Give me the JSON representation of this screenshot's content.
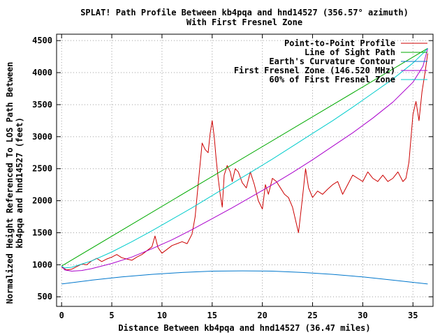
{
  "chart_data": {
    "type": "line",
    "title": "SPLAT! Path Profile Between kb4pqa and hnd14527 (356.57° azimuth)",
    "subtitle": "With First Fresnel Zone",
    "xlabel": "Distance Between kb4pqa and hnd14527 (36.47 miles)",
    "ylabel_line1": "Normalized Height Referenced To LOS Path Between",
    "ylabel_line2": "kb4pqa and hnd14527 (feet)",
    "xlim": [
      -0.5,
      37.0
    ],
    "ylim": [
      350,
      4600
    ],
    "x_ticks": [
      0,
      5,
      10,
      15,
      20,
      25,
      30,
      35
    ],
    "y_ticks": [
      500,
      1000,
      1500,
      2000,
      2500,
      3000,
      3500,
      4000,
      4500
    ],
    "grid": true,
    "legend_position": "top-right",
    "series": [
      {
        "name": "Point-to-Point Profile",
        "color": "#cc0000",
        "x": [
          0,
          0.5,
          1,
          1.5,
          2,
          2.5,
          3,
          3.5,
          4,
          4.5,
          5,
          5.5,
          6,
          6.5,
          7,
          7.5,
          8,
          8.5,
          9,
          9.3,
          9.6,
          10,
          10.5,
          11,
          11.5,
          12,
          12.5,
          13,
          13.3,
          13.6,
          14,
          14.3,
          14.6,
          14.8,
          15,
          15.2,
          15.4,
          15.6,
          15.8,
          16,
          16.2,
          16.5,
          16.8,
          17,
          17.3,
          17.6,
          18,
          18.4,
          18.8,
          19.2,
          19.6,
          20,
          20.3,
          20.6,
          21,
          21.4,
          21.8,
          22.2,
          22.6,
          23,
          23.3,
          23.6,
          24,
          24.3,
          24.6,
          25,
          25.5,
          26,
          26.5,
          27,
          27.5,
          28,
          28.5,
          29,
          29.5,
          30,
          30.5,
          31,
          31.5,
          32,
          32.5,
          33,
          33.5,
          34,
          34.3,
          34.6,
          35,
          35.3,
          35.6,
          35.9,
          36.2,
          36.47
        ],
        "values": [
          960,
          920,
          930,
          970,
          1010,
          1000,
          1060,
          1100,
          1050,
          1090,
          1120,
          1160,
          1110,
          1090,
          1070,
          1120,
          1160,
          1220,
          1280,
          1450,
          1270,
          1180,
          1240,
          1300,
          1330,
          1360,
          1330,
          1480,
          1750,
          2250,
          2900,
          2800,
          2750,
          3050,
          3250,
          3000,
          2650,
          2350,
          2100,
          1900,
          2400,
          2550,
          2450,
          2300,
          2500,
          2450,
          2280,
          2200,
          2450,
          2250,
          2000,
          1870,
          2250,
          2100,
          2350,
          2300,
          2200,
          2100,
          2050,
          1900,
          1700,
          1500,
          2050,
          2500,
          2200,
          2050,
          2150,
          2100,
          2180,
          2250,
          2300,
          2100,
          2250,
          2400,
          2350,
          2300,
          2450,
          2350,
          2300,
          2400,
          2300,
          2350,
          2450,
          2300,
          2350,
          2600,
          3350,
          3550,
          3250,
          3700,
          4000,
          4300
        ]
      },
      {
        "name": "Line of Sight Path",
        "color": "#00aa00",
        "x": [
          0,
          36.47
        ],
        "values": [
          980,
          4380
        ]
      },
      {
        "name": "Earth's Curvature Contour",
        "color": "#0077cc",
        "x": [
          0,
          3,
          6,
          9,
          12,
          15,
          18,
          21,
          24,
          27,
          30,
          33,
          36.47
        ],
        "values": [
          700,
          760,
          810,
          850,
          880,
          900,
          905,
          900,
          880,
          850,
          810,
          760,
          700
        ]
      },
      {
        "name": "First Fresnel Zone (146.520 MHz)",
        "color": "#aa00cc",
        "x": [
          0,
          0.3,
          1,
          2,
          3,
          5,
          7,
          9,
          11,
          13,
          15,
          17,
          19,
          21,
          23,
          25,
          27,
          29,
          31,
          33,
          35,
          36,
          36.47
        ],
        "values": [
          980,
          920,
          900,
          910,
          940,
          1020,
          1120,
          1250,
          1390,
          1550,
          1720,
          1890,
          2070,
          2250,
          2440,
          2640,
          2850,
          3060,
          3290,
          3540,
          3850,
          4100,
          4380
        ]
      },
      {
        "name": "60% of First Fresnel Zone",
        "color": "#00cccc",
        "x": [
          0,
          0.3,
          1,
          2,
          3,
          5,
          7,
          9,
          11,
          13,
          15,
          17,
          19,
          21,
          23,
          25,
          27,
          29,
          31,
          33,
          35,
          36,
          36.47
        ],
        "values": [
          980,
          950,
          960,
          1010,
          1060,
          1200,
          1360,
          1530,
          1710,
          1890,
          2080,
          2270,
          2460,
          2650,
          2850,
          3050,
          3250,
          3460,
          3680,
          3900,
          4150,
          4300,
          4380
        ]
      }
    ]
  }
}
